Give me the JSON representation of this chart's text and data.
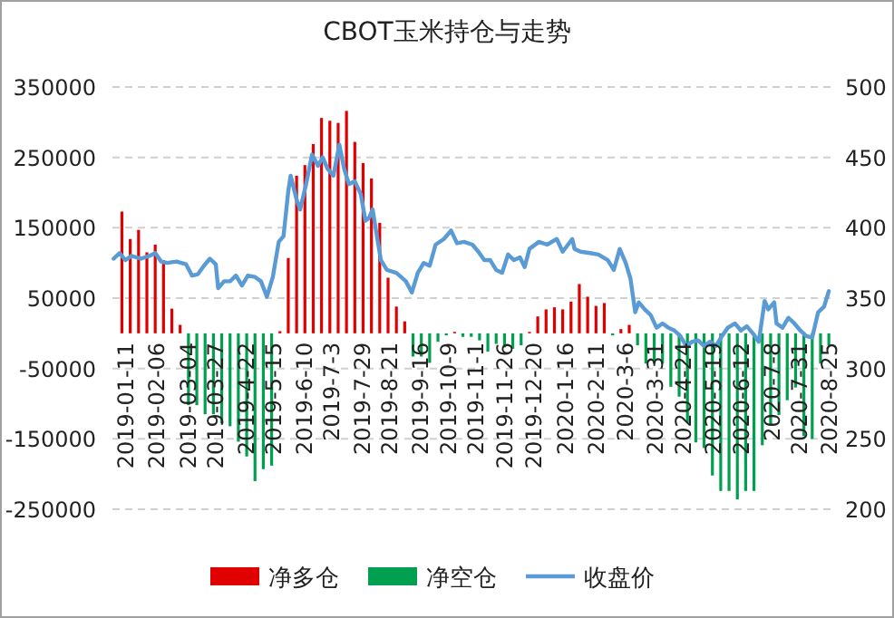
{
  "chart_data": {
    "type": "bar",
    "title": "CBOT玉米持仓与走势",
    "x": [
      "2019-01-08",
      "2019-01-15",
      "2019-01-22",
      "2019-01-29",
      "2019-02-05",
      "2019-02-12",
      "2019-02-19",
      "2019-02-26",
      "2019-03-05",
      "2019-03-12",
      "2019-03-19",
      "2019-03-26",
      "2019-04-02",
      "2019-04-09",
      "2019-04-16",
      "2019-04-23",
      "2019-04-30",
      "2019-05-07",
      "2019-05-14",
      "2019-05-21",
      "2019-05-28",
      "2019-06-04",
      "2019-06-11",
      "2019-06-18",
      "2019-06-25",
      "2019-07-02",
      "2019-07-09",
      "2019-07-16",
      "2019-07-23",
      "2019-07-30",
      "2019-08-06",
      "2019-08-13",
      "2019-08-20",
      "2019-08-27",
      "2019-09-03",
      "2019-09-10",
      "2019-09-17",
      "2019-09-24",
      "2019-10-01",
      "2019-10-08",
      "2019-10-15",
      "2019-10-22",
      "2019-10-29",
      "2019-11-05",
      "2019-11-12",
      "2019-11-19",
      "2019-11-26",
      "2019-12-03",
      "2019-12-10",
      "2019-12-17",
      "2019-12-24",
      "2019-12-31",
      "2020-01-07",
      "2020-01-14",
      "2020-01-21",
      "2020-01-28",
      "2020-02-04",
      "2020-02-11",
      "2020-02-18",
      "2020-02-25",
      "2020-03-03",
      "2020-03-10",
      "2020-03-17",
      "2020-03-24",
      "2020-03-31",
      "2020-04-07",
      "2020-04-14",
      "2020-04-21",
      "2020-04-28",
      "2020-05-05",
      "2020-05-12",
      "2020-05-19",
      "2020-05-26",
      "2020-06-02",
      "2020-06-09",
      "2020-06-16",
      "2020-06-23",
      "2020-06-30",
      "2020-07-07",
      "2020-07-14",
      "2020-07-21",
      "2020-07-28",
      "2020-08-04",
      "2020-08-11",
      "2020-08-18",
      "2020-08-25"
    ],
    "series": [
      {
        "name": "净多仓",
        "color": "#e00000",
        "values": [
          173000,
          134000,
          147000,
          115000,
          126000,
          104000,
          35000,
          12000,
          null,
          null,
          null,
          null,
          null,
          null,
          null,
          null,
          null,
          null,
          null,
          3000,
          107000,
          224000,
          239000,
          269000,
          306000,
          302000,
          299000,
          316000,
          272000,
          242000,
          220000,
          157000,
          79000,
          38000,
          17000,
          null,
          null,
          null,
          null,
          null,
          2000,
          null,
          null,
          null,
          null,
          null,
          null,
          null,
          null,
          2000,
          24000,
          34000,
          37000,
          34000,
          45000,
          70000,
          52000,
          39000,
          43000,
          null,
          6000,
          12000,
          null,
          null,
          null,
          null,
          null,
          null,
          null,
          null,
          null,
          null,
          null,
          null,
          null,
          null,
          null,
          null,
          null,
          null,
          null,
          null,
          null,
          null,
          null,
          null
        ]
      },
      {
        "name": "净空仓",
        "color": "#00a050",
        "values": [
          null,
          null,
          null,
          null,
          null,
          null,
          null,
          null,
          -102000,
          -102000,
          -115000,
          -115000,
          -128000,
          -132000,
          -154000,
          -175000,
          -210000,
          -193000,
          -188000,
          null,
          null,
          null,
          null,
          null,
          null,
          null,
          null,
          null,
          null,
          null,
          null,
          null,
          null,
          null,
          null,
          -33000,
          -33000,
          -42000,
          -12000,
          -3000,
          null,
          -5000,
          -5000,
          -10000,
          -26000,
          -15000,
          -20000,
          -22000,
          -17000,
          null,
          null,
          null,
          null,
          null,
          null,
          null,
          null,
          null,
          null,
          -3000,
          null,
          null,
          -17000,
          -43000,
          -43000,
          -43000,
          -76000,
          -90000,
          -127000,
          -155000,
          -163000,
          -202000,
          -224000,
          -224000,
          -236000,
          -224000,
          -224000,
          -159000,
          -129000,
          -116000,
          -95000,
          -77000,
          -146000,
          -150000,
          -43000,
          -17000
        ]
      },
      {
        "name": "收盘价",
        "type": "line",
        "axis": "y2",
        "color": "#5b9bd5",
        "x": [
          "2019-01-01",
          "2019-01-06",
          "2019-01-11",
          "2019-01-16",
          "2019-01-24",
          "2019-01-31",
          "2019-02-05",
          "2019-02-10",
          "2019-02-15",
          "2019-02-23",
          "2019-03-03",
          "2019-03-08",
          "2019-03-13",
          "2019-03-18",
          "2019-03-23",
          "2019-03-28",
          "2019-03-30",
          "2019-04-04",
          "2019-04-09",
          "2019-04-14",
          "2019-04-19",
          "2019-04-24",
          "2019-04-30",
          "2019-05-05",
          "2019-05-10",
          "2019-05-15",
          "2019-05-20",
          "2019-05-24",
          "2019-05-28",
          "2019-05-30",
          "2019-06-04",
          "2019-06-07",
          "2019-06-12",
          "2019-06-17",
          "2019-06-22",
          "2019-06-26",
          "2019-06-30",
          "2019-07-05",
          "2019-07-10",
          "2019-07-14",
          "2019-07-18",
          "2019-07-23",
          "2019-07-28",
          "2019-08-01",
          "2019-08-04",
          "2019-08-07",
          "2019-08-11",
          "2019-08-14",
          "2019-08-19",
          "2019-08-27",
          "2019-09-04",
          "2019-09-09",
          "2019-09-14",
          "2019-09-19",
          "2019-09-24",
          "2019-09-29",
          "2019-10-06",
          "2019-10-12",
          "2019-10-17",
          "2019-10-23",
          "2019-10-30",
          "2019-11-04",
          "2019-11-09",
          "2019-11-14",
          "2019-11-19",
          "2019-11-24",
          "2019-11-29",
          "2019-12-04",
          "2019-12-09",
          "2019-12-13",
          "2019-12-17",
          "2019-12-25",
          "2020-01-01",
          "2020-01-09",
          "2020-01-14",
          "2020-01-22",
          "2020-01-24",
          "2020-01-29",
          "2020-02-06",
          "2020-02-13",
          "2020-02-21",
          "2020-02-26",
          "2020-03-02",
          "2020-03-07",
          "2020-03-11",
          "2020-03-15",
          "2020-03-18",
          "2020-03-23",
          "2020-03-28",
          "2020-04-02",
          "2020-04-07",
          "2020-04-12",
          "2020-04-17",
          "2020-04-22",
          "2020-04-27",
          "2020-05-02",
          "2020-05-07",
          "2020-05-12",
          "2020-05-17",
          "2020-05-22",
          "2020-05-27",
          "2020-06-01",
          "2020-06-07",
          "2020-06-12",
          "2020-06-17",
          "2020-06-22",
          "2020-06-27",
          "2020-07-02",
          "2020-07-05",
          "2020-07-10",
          "2020-07-12",
          "2020-07-17",
          "2020-07-22",
          "2020-07-27",
          "2020-08-01",
          "2020-08-06",
          "2020-08-11",
          "2020-08-16",
          "2020-08-21",
          "2020-08-25"
        ],
        "values": [
          378,
          382,
          377,
          380,
          378,
          380,
          382,
          376,
          375,
          376,
          374,
          366,
          367,
          373,
          378,
          374,
          357,
          362,
          362,
          366,
          359,
          366,
          365,
          362,
          351,
          365,
          390,
          394,
          426,
          437,
          420,
          413,
          431,
          452,
          444,
          450,
          442,
          437,
          459,
          442,
          431,
          433,
          424,
          405,
          407,
          413,
          392,
          377,
          370,
          368,
          362,
          354,
          368,
          375,
          373,
          388,
          392,
          398,
          389,
          390,
          388,
          383,
          377,
          377,
          370,
          368,
          381,
          377,
          379,
          372,
          385,
          390,
          388,
          392,
          383,
          392,
          385,
          383,
          382,
          381,
          377,
          370,
          385,
          375,
          364,
          340,
          347,
          342,
          338,
          329,
          332,
          329,
          327,
          323,
          316,
          319,
          320,
          316,
          319,
          316,
          323,
          329,
          332,
          327,
          330,
          325,
          319,
          348,
          342,
          347,
          332,
          329,
          336,
          332,
          327,
          323,
          322,
          340,
          344,
          355
        ]
      }
    ],
    "xlim": [
      "2018-12-31",
      "2020-08-31"
    ],
    "xticks": [
      {
        "value": "2019-01-11",
        "label": "2019-01-11"
      },
      {
        "value": "2019-02-06",
        "label": "2019-02-06"
      },
      {
        "value": "2019-03-04",
        "label": "2019-03-04"
      },
      {
        "value": "2019-03-27",
        "label": "2019-03-27"
      },
      {
        "value": "2019-04-22",
        "label": "2019-4-22"
      },
      {
        "value": "2019-05-15",
        "label": "2019-5-15"
      },
      {
        "value": "2019-06-10",
        "label": "2019-6-10"
      },
      {
        "value": "2019-07-03",
        "label": "2019-7-3"
      },
      {
        "value": "2019-07-29",
        "label": "2019-7-29"
      },
      {
        "value": "2019-08-21",
        "label": "2019-8-21"
      },
      {
        "value": "2019-09-16",
        "label": "2019-9-16"
      },
      {
        "value": "2019-10-09",
        "label": "2019-10-9"
      },
      {
        "value": "2019-11-01",
        "label": "2019-11-1"
      },
      {
        "value": "2019-11-26",
        "label": "2019-11-26"
      },
      {
        "value": "2019-12-20",
        "label": "2019-12-20"
      },
      {
        "value": "2020-01-16",
        "label": "2020-1-16"
      },
      {
        "value": "2020-02-11",
        "label": "2020-2-11"
      },
      {
        "value": "2020-03-06",
        "label": "2020-3-6"
      },
      {
        "value": "2020-03-31",
        "label": "2020-3-31"
      },
      {
        "value": "2020-04-24",
        "label": "2020-4-24"
      },
      {
        "value": "2020-05-19",
        "label": "2020-5-19"
      },
      {
        "value": "2020-06-12",
        "label": "2020-6-12"
      },
      {
        "value": "2020-07-08",
        "label": "2020-7-8"
      },
      {
        "value": "2020-07-31",
        "label": "2020-7-31"
      },
      {
        "value": "2020-08-25",
        "label": "2020-8-25"
      }
    ],
    "ylim": [
      -250000,
      350000
    ],
    "yticks": [
      -250000,
      -150000,
      -50000,
      50000,
      150000,
      250000,
      350000
    ],
    "y2lim": [
      200,
      500
    ],
    "y2ticks": [
      200,
      250,
      300,
      350,
      400,
      450,
      500
    ],
    "grid": "y",
    "legend": "bottom"
  }
}
